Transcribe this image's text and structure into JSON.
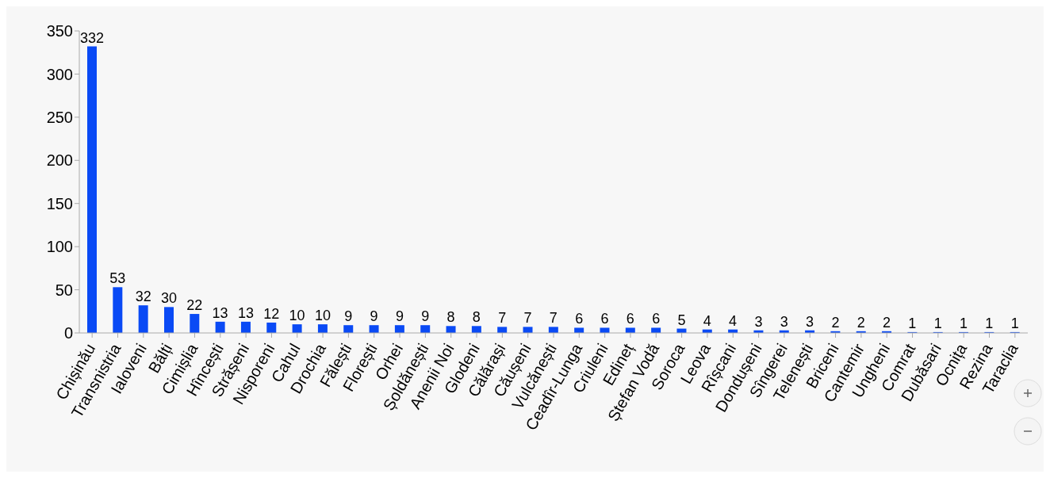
{
  "chart_data": {
    "type": "bar",
    "categories": [
      "Chișinău",
      "Transnistria",
      "Ialoveni",
      "Bălți",
      "Cimișlia",
      "Hîncești",
      "Strășeni",
      "Nisporeni",
      "Cahul",
      "Drochia",
      "Fălești",
      "Florești",
      "Orhei",
      "Șoldănești",
      "Anenii Noi",
      "Glodeni",
      "Călărași",
      "Căușeni",
      "Vulcănești",
      "Ceadîr-Lunga",
      "Criuleni",
      "Edineț",
      "Ștefan Vodă",
      "Soroca",
      "Leova",
      "Rîșcani",
      "Dondușeni",
      "Sîngerei",
      "Telenești",
      "Briceni",
      "Cantemir",
      "Ungheni",
      "Comrat",
      "Dubăsari",
      "Ocnița",
      "Rezina",
      "Taraclia"
    ],
    "values": [
      332,
      53,
      32,
      30,
      22,
      13,
      13,
      12,
      10,
      10,
      9,
      9,
      9,
      9,
      8,
      8,
      7,
      7,
      7,
      6,
      6,
      6,
      6,
      5,
      4,
      4,
      3,
      3,
      3,
      2,
      2,
      2,
      1,
      1,
      1,
      1,
      1
    ],
    "color": "#0a4af5",
    "ylim": [
      0,
      350
    ],
    "yticks": [
      0,
      50,
      100,
      150,
      200,
      250,
      300,
      350
    ],
    "grid": false,
    "legend": false,
    "data_labels": true
  }
}
